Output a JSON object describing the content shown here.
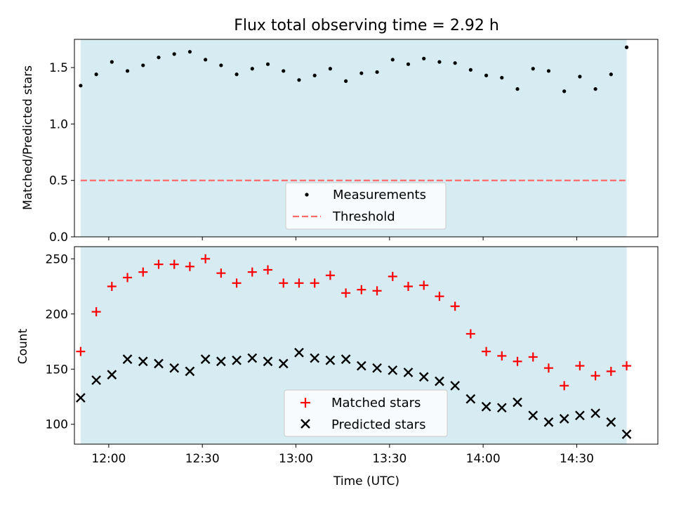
{
  "title": "Flux total observing time = 2.92 h",
  "xlabel": "Time (UTC)",
  "x_ticks": [
    "12:00",
    "12:30",
    "13:00",
    "13:30",
    "14:00",
    "14:30"
  ],
  "colors": {
    "shade": "#add8e6",
    "measurement": "#000000",
    "threshold": "#ff6b6b",
    "matched": "#ff0000",
    "predicted": "#000000"
  },
  "chart_data": [
    {
      "type": "scatter",
      "ylabel": "Matched/Predicted stars",
      "ylim": [
        0,
        1.75
      ],
      "y_ticks": [
        "0.0",
        "0.5",
        "1.0",
        "1.5"
      ],
      "x_range": [
        "11:49",
        "14:56"
      ],
      "shaded_span": [
        "11:51",
        "14:46"
      ],
      "legend_position": "lower center",
      "series": [
        {
          "name": "Measurements",
          "marker": "dot",
          "x": [
            "11:51",
            "11:56",
            "12:01",
            "12:06",
            "12:11",
            "12:16",
            "12:21",
            "12:26",
            "12:31",
            "12:36",
            "12:41",
            "12:46",
            "12:51",
            "12:56",
            "13:01",
            "13:06",
            "13:11",
            "13:16",
            "13:21",
            "13:26",
            "13:31",
            "13:36",
            "13:41",
            "13:46",
            "13:51",
            "13:56",
            "14:01",
            "14:06",
            "14:11",
            "14:16",
            "14:21",
            "14:26",
            "14:31",
            "14:36",
            "14:41",
            "14:46"
          ],
          "y": [
            1.34,
            1.44,
            1.55,
            1.47,
            1.52,
            1.59,
            1.62,
            1.64,
            1.57,
            1.52,
            1.44,
            1.49,
            1.53,
            1.47,
            1.39,
            1.43,
            1.49,
            1.38,
            1.45,
            1.46,
            1.57,
            1.53,
            1.58,
            1.55,
            1.54,
            1.48,
            1.43,
            1.41,
            1.31,
            1.49,
            1.47,
            1.29,
            1.42,
            1.31,
            1.44,
            1.68
          ]
        },
        {
          "name": "Threshold",
          "style": "dashed",
          "x": [
            "11:51",
            "14:46"
          ],
          "y": [
            0.5,
            0.5
          ]
        }
      ]
    },
    {
      "type": "scatter",
      "ylabel": "Count",
      "ylim": [
        82,
        261
      ],
      "y_ticks": [
        "100",
        "150",
        "200",
        "250"
      ],
      "x_range": [
        "11:49",
        "14:56"
      ],
      "shaded_span": [
        "11:51",
        "14:46"
      ],
      "legend_position": "lower center",
      "series": [
        {
          "name": "Matched stars",
          "marker": "plus",
          "x": [
            "11:51",
            "11:56",
            "12:01",
            "12:06",
            "12:11",
            "12:16",
            "12:21",
            "12:26",
            "12:31",
            "12:36",
            "12:41",
            "12:46",
            "12:51",
            "12:56",
            "13:01",
            "13:06",
            "13:11",
            "13:16",
            "13:21",
            "13:26",
            "13:31",
            "13:36",
            "13:41",
            "13:46",
            "13:51",
            "13:56",
            "14:01",
            "14:06",
            "14:11",
            "14:16",
            "14:21",
            "14:26",
            "14:31",
            "14:36",
            "14:41",
            "14:46"
          ],
          "y": [
            166,
            202,
            225,
            233,
            238,
            245,
            245,
            243,
            250,
            237,
            228,
            238,
            240,
            228,
            228,
            228,
            235,
            219,
            222,
            221,
            234,
            225,
            226,
            216,
            207,
            182,
            166,
            162,
            157,
            161,
            151,
            135,
            153,
            144,
            148,
            153
          ]
        },
        {
          "name": "Predicted stars",
          "marker": "x",
          "x": [
            "11:51",
            "11:56",
            "12:01",
            "12:06",
            "12:11",
            "12:16",
            "12:21",
            "12:26",
            "12:31",
            "12:36",
            "12:41",
            "12:46",
            "12:51",
            "12:56",
            "13:01",
            "13:06",
            "13:11",
            "13:16",
            "13:21",
            "13:26",
            "13:31",
            "13:36",
            "13:41",
            "13:46",
            "13:51",
            "13:56",
            "14:01",
            "14:06",
            "14:11",
            "14:16",
            "14:21",
            "14:26",
            "14:31",
            "14:36",
            "14:41",
            "14:46"
          ],
          "y": [
            124,
            140,
            145,
            159,
            157,
            155,
            151,
            148,
            159,
            157,
            158,
            160,
            157,
            155,
            165,
            160,
            158,
            159,
            153,
            151,
            149,
            147,
            143,
            139,
            135,
            123,
            116,
            115,
            120,
            108,
            102,
            105,
            108,
            110,
            102,
            91
          ]
        }
      ]
    }
  ]
}
